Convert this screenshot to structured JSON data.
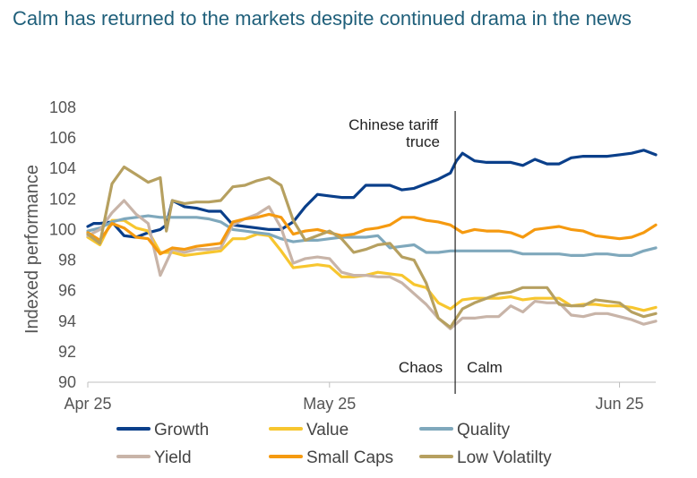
{
  "title": "Calm has returned to the markets despite continued drama in the news",
  "chart_data": {
    "type": "line",
    "title": "Calm has returned to the markets despite continued drama in the news",
    "xlabel": "",
    "ylabel": "Indexed performance",
    "ylim": [
      90,
      108
    ],
    "yticks": [
      90,
      92,
      94,
      96,
      98,
      100,
      102,
      104,
      106,
      108
    ],
    "xlim": [
      0,
      47
    ],
    "xticks": [
      {
        "x": 0,
        "label": "Apr 25"
      },
      {
        "x": 20,
        "label": "May 25"
      },
      {
        "x": 44,
        "label": "Jun 25"
      }
    ],
    "legend_position": "bottom",
    "annotations": {
      "event_x": 30.4,
      "event_label_1": "Chinese tariff",
      "event_label_2": "truce",
      "left_label": "Chaos",
      "right_label": "Calm"
    },
    "series": [
      {
        "name": "Growth",
        "color": "#0a3f8a",
        "x": [
          0,
          0.5,
          1,
          2,
          3,
          4,
          5,
          6,
          6.5,
          7,
          8,
          9,
          10,
          11,
          12,
          13,
          14,
          15,
          16,
          17,
          18,
          19,
          20,
          21,
          22,
          23,
          24,
          25,
          26,
          27,
          28,
          29,
          30,
          30.5,
          31,
          32,
          33,
          34,
          35,
          36,
          37,
          38,
          39,
          40,
          41,
          42,
          43,
          44,
          45,
          46,
          47
        ],
        "values": [
          100.2,
          100.4,
          100.4,
          100.5,
          99.6,
          99.5,
          99.8,
          100.0,
          100.3,
          101.9,
          101.5,
          101.4,
          101.2,
          101.2,
          100.3,
          100.2,
          100.1,
          100.0,
          100.0,
          100.5,
          101.5,
          102.3,
          102.2,
          102.1,
          102.1,
          102.9,
          102.9,
          102.9,
          102.6,
          102.7,
          103.0,
          103.3,
          103.7,
          104.5,
          105.0,
          104.5,
          104.4,
          104.4,
          104.4,
          104.2,
          104.6,
          104.3,
          104.3,
          104.7,
          104.8,
          104.8,
          104.8,
          104.9,
          105.0,
          105.2,
          104.9
        ]
      },
      {
        "name": "Value",
        "color": "#f7c62f",
        "x": [
          0,
          1,
          2,
          3,
          4,
          5,
          6,
          7,
          8,
          9,
          10,
          11,
          12,
          13,
          14,
          15,
          16,
          17,
          18,
          19,
          20,
          21,
          22,
          23,
          24,
          25,
          26,
          27,
          28,
          29,
          30,
          31,
          32,
          33,
          34,
          35,
          36,
          37,
          38,
          39,
          40,
          41,
          42,
          43,
          44,
          45,
          46,
          47
        ],
        "values": [
          99.5,
          99.0,
          100.6,
          100.6,
          100.1,
          99.9,
          98.5,
          98.5,
          98.3,
          98.4,
          98.5,
          98.6,
          99.4,
          99.4,
          99.7,
          99.6,
          98.6,
          97.5,
          97.6,
          97.7,
          97.6,
          96.9,
          96.9,
          97.0,
          97.2,
          97.1,
          97.0,
          96.4,
          96.2,
          95.2,
          94.8,
          95.4,
          95.5,
          95.5,
          95.5,
          95.6,
          95.4,
          95.5,
          95.5,
          95.5,
          95.0,
          95.1,
          95.1,
          95.0,
          95.0,
          94.9,
          94.7,
          94.9
        ]
      },
      {
        "name": "Quality",
        "color": "#7fa8bc",
        "x": [
          0,
          1,
          2,
          3,
          4,
          5,
          6,
          7,
          8,
          9,
          10,
          11,
          12,
          13,
          14,
          15,
          16,
          17,
          18,
          19,
          20,
          21,
          22,
          23,
          24,
          25,
          26,
          27,
          28,
          29,
          30,
          31,
          32,
          33,
          34,
          35,
          36,
          37,
          38,
          39,
          40,
          41,
          42,
          43,
          44,
          45,
          46,
          47
        ],
        "values": [
          99.9,
          100.1,
          100.5,
          100.7,
          100.8,
          100.9,
          100.8,
          100.8,
          100.8,
          100.8,
          100.7,
          100.5,
          100.0,
          99.9,
          99.8,
          99.7,
          99.4,
          99.2,
          99.3,
          99.3,
          99.4,
          99.5,
          99.5,
          99.5,
          99.6,
          98.8,
          98.9,
          99.0,
          98.5,
          98.5,
          98.6,
          98.6,
          98.6,
          98.6,
          98.6,
          98.6,
          98.4,
          98.4,
          98.4,
          98.4,
          98.3,
          98.3,
          98.4,
          98.4,
          98.3,
          98.3,
          98.6,
          98.8
        ]
      },
      {
        "name": "Yield",
        "color": "#c8b4a8",
        "x": [
          0,
          1,
          2,
          3,
          4,
          5,
          6,
          7,
          8,
          9,
          10,
          11,
          12,
          13,
          14,
          15,
          16,
          17,
          18,
          19,
          20,
          21,
          22,
          23,
          24,
          25,
          26,
          27,
          28,
          29,
          30,
          31,
          32,
          33,
          34,
          35,
          36,
          37,
          38,
          39,
          40,
          41,
          42,
          43,
          44,
          45,
          46,
          47
        ],
        "values": [
          99.6,
          100.0,
          101.1,
          101.9,
          101.0,
          100.4,
          97.0,
          98.7,
          98.5,
          98.7,
          98.7,
          98.8,
          100.3,
          100.7,
          101.0,
          101.5,
          100.1,
          97.8,
          98.1,
          98.2,
          98.1,
          97.2,
          97.0,
          97.0,
          96.9,
          96.9,
          96.5,
          95.8,
          95.1,
          94.2,
          93.5,
          94.2,
          94.2,
          94.3,
          94.3,
          95.0,
          94.6,
          95.3,
          95.2,
          95.2,
          94.4,
          94.3,
          94.5,
          94.5,
          94.3,
          94.1,
          93.8,
          94.0
        ]
      },
      {
        "name": "Small Caps",
        "color": "#f59a10",
        "x": [
          0,
          1,
          2,
          3,
          4,
          5,
          6,
          7,
          8,
          9,
          10,
          11,
          12,
          13,
          14,
          15,
          16,
          17,
          18,
          19,
          20,
          21,
          22,
          23,
          24,
          25,
          26,
          27,
          28,
          29,
          30,
          31,
          32,
          33,
          34,
          35,
          36,
          37,
          38,
          39,
          40,
          41,
          42,
          43,
          44,
          45,
          46,
          47
        ],
        "values": [
          99.8,
          99.3,
          100.4,
          100.1,
          99.5,
          99.4,
          98.4,
          98.8,
          98.7,
          98.9,
          99.0,
          99.1,
          100.5,
          100.7,
          100.8,
          101.0,
          100.8,
          99.7,
          99.9,
          100.0,
          99.8,
          99.6,
          99.7,
          100.0,
          100.1,
          100.3,
          100.8,
          100.8,
          100.6,
          100.5,
          100.3,
          99.8,
          100.0,
          99.9,
          99.9,
          99.8,
          99.5,
          100.0,
          100.1,
          100.2,
          100.0,
          99.9,
          99.6,
          99.5,
          99.4,
          99.5,
          99.8,
          100.3
        ]
      },
      {
        "name": "Low Volatilty",
        "color": "#b6a060",
        "x": [
          0,
          1,
          2,
          3,
          4,
          5,
          6,
          6.5,
          7,
          8,
          9,
          10,
          11,
          12,
          13,
          14,
          15,
          16,
          17,
          18,
          19,
          20,
          21,
          22,
          23,
          24,
          25,
          26,
          27,
          28,
          29,
          30,
          31,
          32,
          33,
          34,
          35,
          36,
          37,
          38,
          39,
          40,
          41,
          42,
          43,
          44,
          45,
          46,
          47
        ],
        "values": [
          99.7,
          99.1,
          103.0,
          104.1,
          103.6,
          103.1,
          103.4,
          99.9,
          101.9,
          101.7,
          101.8,
          101.8,
          101.9,
          102.8,
          102.9,
          103.2,
          103.4,
          102.9,
          100.6,
          99.3,
          99.6,
          99.9,
          99.4,
          98.5,
          98.7,
          99.0,
          99.1,
          98.2,
          98.0,
          96.5,
          94.2,
          93.6,
          94.8,
          95.2,
          95.5,
          95.8,
          95.9,
          96.2,
          96.2,
          96.2,
          95.1,
          95.0,
          95.0,
          95.4,
          95.3,
          95.2,
          94.6,
          94.3,
          94.5
        ]
      }
    ]
  }
}
